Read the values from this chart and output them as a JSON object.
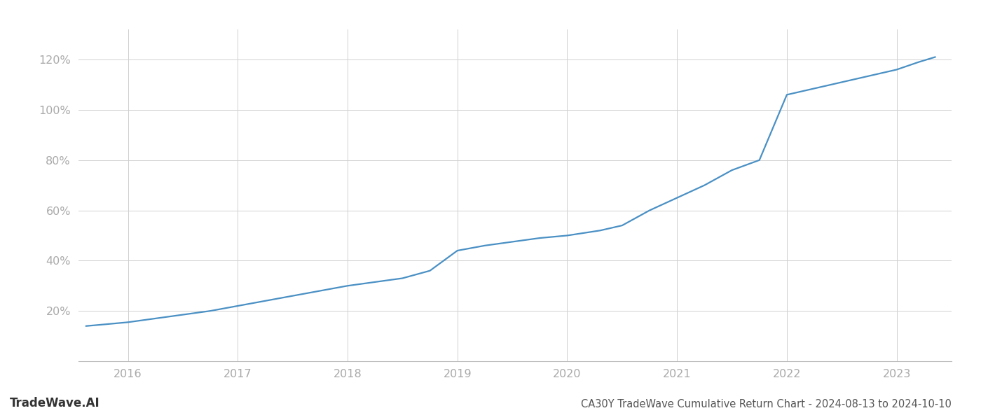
{
  "title": "CA30Y TradeWave Cumulative Return Chart - 2024-08-13 to 2024-10-10",
  "watermark": "TradeWave.AI",
  "line_color": "#4a90c4",
  "background_color": "#ffffff",
  "grid_color": "#d0d0d0",
  "x_values": [
    2015.62,
    2015.75,
    2016.0,
    2016.25,
    2016.5,
    2016.75,
    2017.0,
    2017.25,
    2017.5,
    2017.75,
    2018.0,
    2018.25,
    2018.5,
    2018.75,
    2019.0,
    2019.25,
    2019.5,
    2019.75,
    2020.0,
    2020.15,
    2020.3,
    2020.5,
    2020.75,
    2021.0,
    2021.25,
    2021.5,
    2021.75,
    2022.0,
    2022.1,
    2022.2,
    2022.4,
    2022.6,
    2022.8,
    2023.0,
    2023.2,
    2023.35
  ],
  "y_values": [
    14,
    14.5,
    15.5,
    17,
    18.5,
    20,
    22,
    24,
    26,
    28,
    30,
    31.5,
    33,
    36,
    44,
    46,
    47.5,
    49,
    50,
    51,
    52,
    54,
    60,
    65,
    70,
    76,
    80,
    106,
    107,
    108,
    110,
    112,
    114,
    116,
    119,
    121
  ],
  "xlim": [
    2015.55,
    2023.5
  ],
  "ylim": [
    0,
    132
  ],
  "xticks": [
    2016,
    2017,
    2018,
    2019,
    2020,
    2021,
    2022,
    2023
  ],
  "yticks": [
    20,
    40,
    60,
    80,
    100,
    120
  ],
  "title_fontsize": 10.5,
  "tick_fontsize": 11.5,
  "watermark_fontsize": 12,
  "line_width": 1.6
}
